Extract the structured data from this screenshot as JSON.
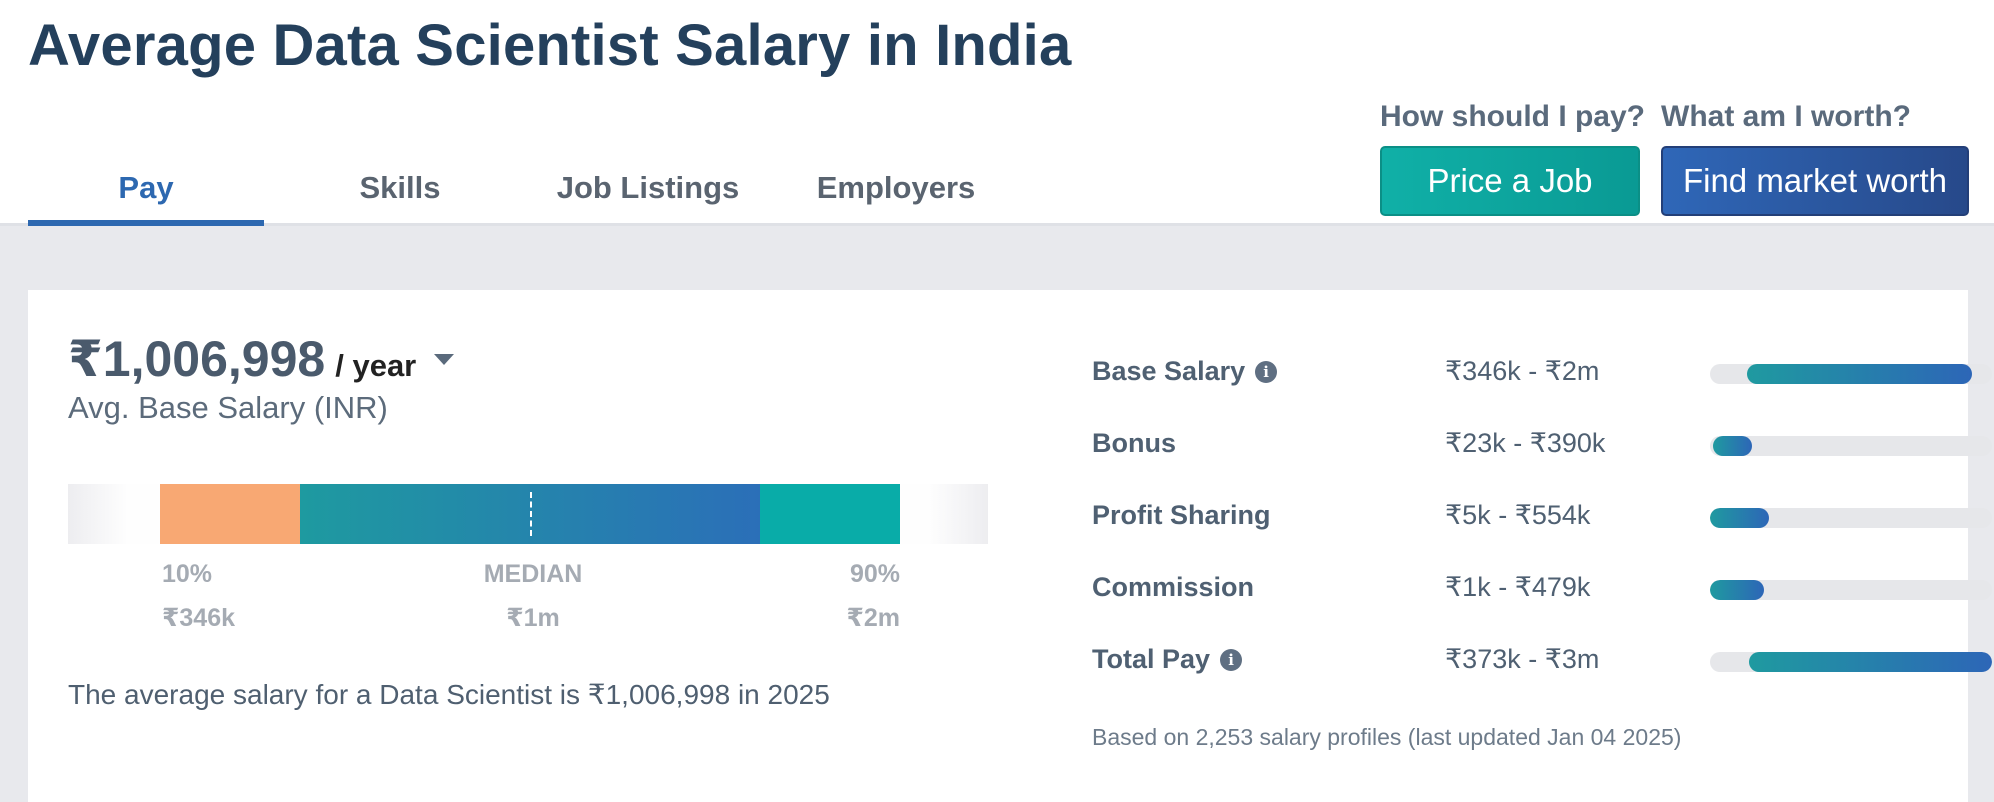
{
  "page": {
    "title": "Average Data Scientist Salary in India"
  },
  "tabs": [
    {
      "label": "Pay",
      "active": true
    },
    {
      "label": "Skills",
      "active": false
    },
    {
      "label": "Job Listings",
      "active": false
    },
    {
      "label": "Employers",
      "active": false
    }
  ],
  "cta": {
    "price_job": {
      "question": "How should I pay?",
      "button": "Price a Job"
    },
    "market_worth": {
      "question": "What am I worth?",
      "button": "Find market worth"
    }
  },
  "salary": {
    "amount": "₹1,006,998",
    "period": "/ year",
    "subtitle": "Avg. Base Salary (INR)",
    "percentiles": {
      "p10": {
        "label": "10%",
        "value": "₹346k"
      },
      "median": {
        "label": "MEDIAN",
        "value": "₹1m"
      },
      "p90": {
        "label": "90%",
        "value": "₹2m"
      }
    },
    "summary": "The average salary for a Data Scientist is ₹1,006,998 in 2025"
  },
  "components": [
    {
      "name": "Base Salary",
      "range": "₹346k - ₹2m",
      "info": true,
      "bar_start_frac": 0.13,
      "bar_end_frac": 0.93
    },
    {
      "name": "Bonus",
      "range": "₹23k - ₹390k",
      "info": false,
      "bar_start_frac": 0.01,
      "bar_end_frac": 0.15
    },
    {
      "name": "Profit Sharing",
      "range": "₹5k - ₹554k",
      "info": false,
      "bar_start_frac": 0.0,
      "bar_end_frac": 0.21
    },
    {
      "name": "Commission",
      "range": "₹1k - ₹479k",
      "info": false,
      "bar_start_frac": 0.0,
      "bar_end_frac": 0.19
    },
    {
      "name": "Total Pay",
      "range": "₹373k - ₹3m",
      "info": true,
      "bar_start_frac": 0.14,
      "bar_end_frac": 1.0
    }
  ],
  "footnote": "Based on 2,253 salary profiles (last updated Jan 04 2025)",
  "colors": {
    "title": "#24405c",
    "active_tab": "#2d68b0",
    "teal": "#0aaca6",
    "blue": "#2d66b7",
    "orange": "#f8a873"
  }
}
